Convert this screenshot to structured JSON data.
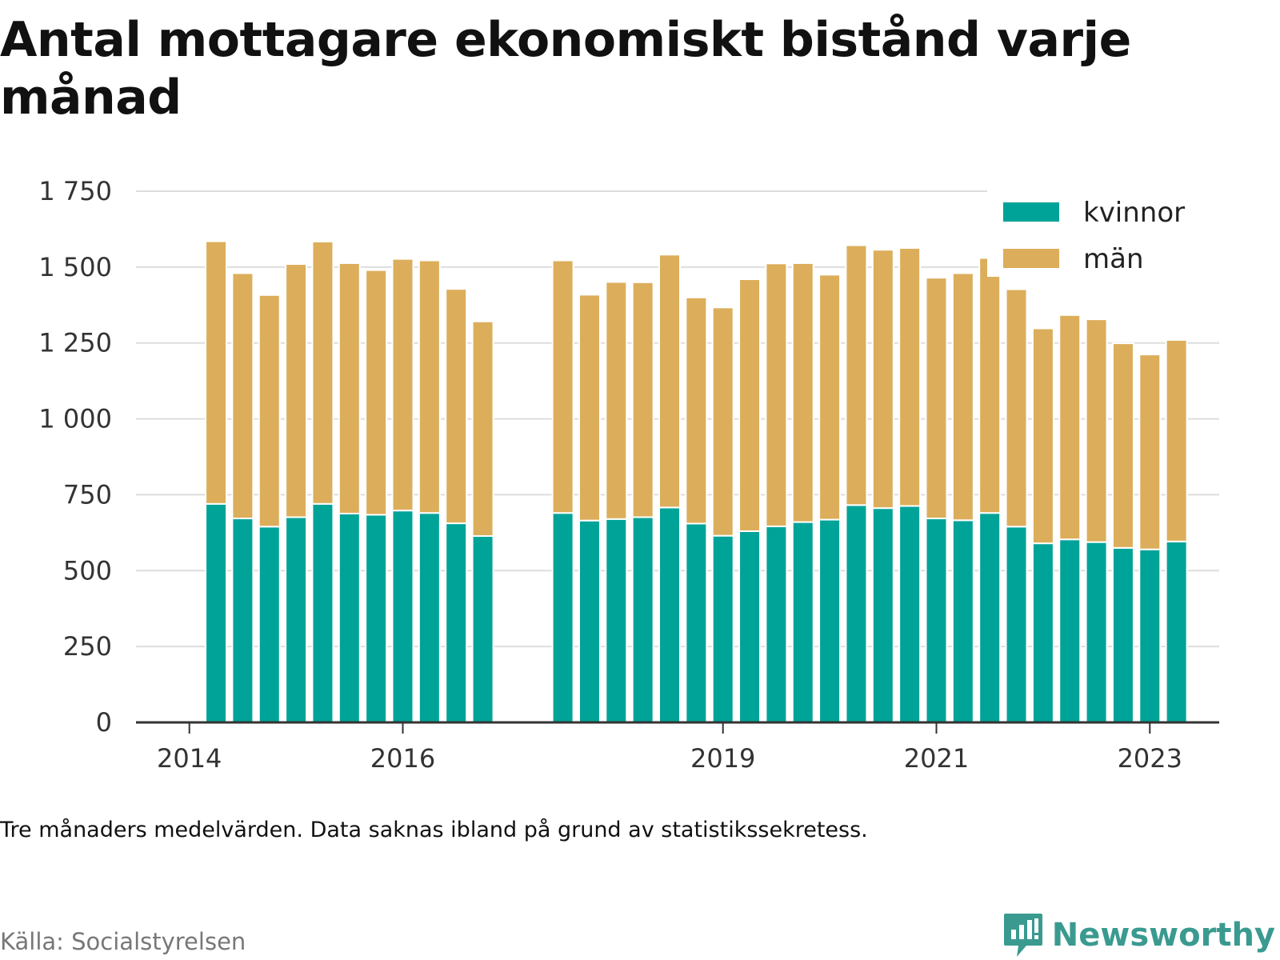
{
  "title": "Antal mottagare ekonomiskt bistånd varje månad",
  "note": "Tre månaders medelvärden. Data saknas ibland på grund av statistikssekretess.",
  "source": "Källa: Socialstyrelsen",
  "brand": {
    "name": "Newsworthy",
    "icon": "newsworthy-logo-icon"
  },
  "colors": {
    "kvinnor": "#00a398",
    "man": "#dcae5b",
    "grid": "#dddddd",
    "axis": "#333333"
  },
  "chart_data": {
    "type": "bar",
    "stacked": true,
    "title": "Antal mottagare ekonomiskt bistånd varje månad",
    "ylim": [
      0,
      1750
    ],
    "yticks": [
      {
        "value": 0,
        "label": "0"
      },
      {
        "value": 250,
        "label": "250"
      },
      {
        "value": 500,
        "label": "500"
      },
      {
        "value": 750,
        "label": "750"
      },
      {
        "value": 1000,
        "label": "1 000"
      },
      {
        "value": 1250,
        "label": "1 250"
      },
      {
        "value": 1500,
        "label": "1 500"
      },
      {
        "value": 1750,
        "label": "1 750"
      }
    ],
    "xticks": [
      {
        "value": 2014.0,
        "label": "2014"
      },
      {
        "value": 2016.0,
        "label": "2016"
      },
      {
        "value": 2019.0,
        "label": "2019"
      },
      {
        "value": 2021.0,
        "label": "2021"
      },
      {
        "value": 2023.0,
        "label": "2023"
      }
    ],
    "xlim": [
      2013.5,
      2023.65
    ],
    "grid": true,
    "legend_position": "top-right",
    "x": [
      2014.25,
      2014.5,
      2014.75,
      2015.0,
      2015.25,
      2015.5,
      2015.75,
      2016.0,
      2016.25,
      2016.5,
      2016.75,
      2017.5,
      2017.75,
      2018.0,
      2018.25,
      2018.5,
      2018.75,
      2019.0,
      2019.25,
      2019.5,
      2019.75,
      2020.0,
      2020.25,
      2020.5,
      2020.75,
      2021.0,
      2021.25,
      2021.5,
      2021.75,
      2022.0,
      2022.25,
      2022.5,
      2022.75,
      2023.0,
      2023.25
    ],
    "series": [
      {
        "name": "kvinnor",
        "values": [
          720,
          672,
          645,
          676,
          720,
          688,
          684,
          698,
          690,
          656,
          614,
          690,
          665,
          670,
          676,
          708,
          655,
          615,
          630,
          646,
          660,
          668,
          716,
          706,
          713,
          672,
          666,
          690,
          645,
          590,
          603,
          594,
          575,
          570,
          596
        ]
      },
      {
        "name": "män",
        "values": [
          865,
          808,
          763,
          834,
          864,
          825,
          806,
          829,
          832,
          772,
          707,
          832,
          744,
          781,
          774,
          833,
          745,
          752,
          830,
          866,
          853,
          807,
          856,
          851,
          850,
          793,
          814,
          840,
          782,
          708,
          739,
          734,
          674,
          642,
          664
        ]
      }
    ]
  }
}
